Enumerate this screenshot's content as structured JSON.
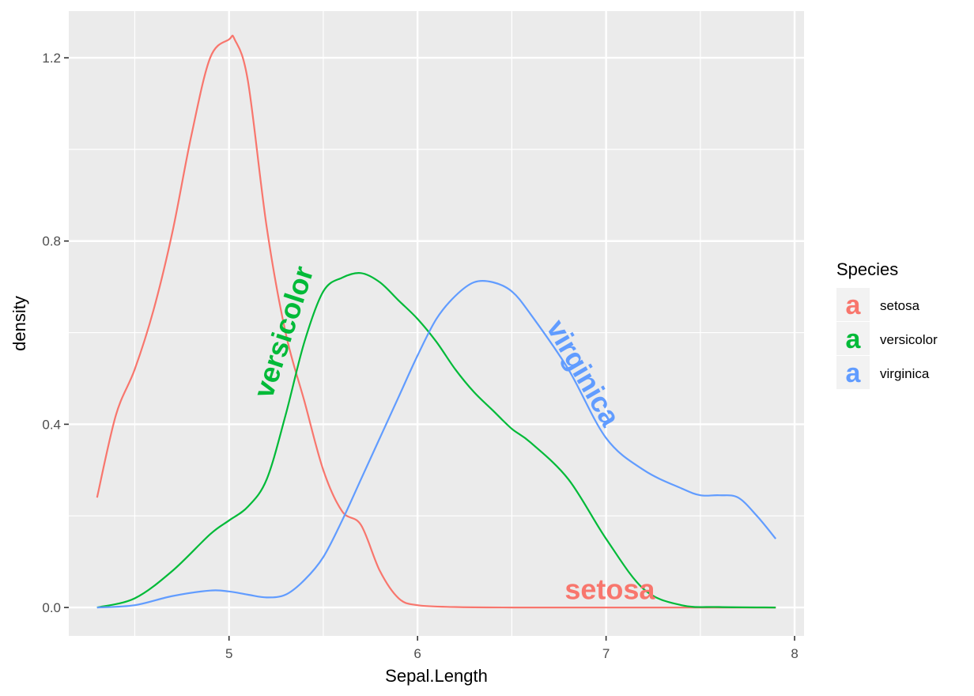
{
  "chart_data": {
    "type": "line",
    "title": "",
    "xlabel": "Sepal.Length",
    "ylabel": "density",
    "xlim": [
      4.15,
      8.05
    ],
    "ylim": [
      -0.062,
      1.302
    ],
    "x_ticks": [
      5,
      6,
      7,
      8
    ],
    "x_tick_labels": [
      "5",
      "6",
      "7",
      "8"
    ],
    "y_ticks": [
      0.0,
      0.4,
      0.8,
      1.2
    ],
    "y_tick_labels": [
      "0.0",
      "0.4",
      "0.8",
      "1.2"
    ],
    "grid": true,
    "legend": {
      "title": "Species",
      "position": "right",
      "key_glyph": "a",
      "entries": [
        "setosa",
        "versicolor",
        "virginica"
      ]
    },
    "series": [
      {
        "name": "setosa",
        "color": "#F8766D",
        "x": [
          4.3,
          4.4,
          4.5,
          4.6,
          4.7,
          4.8,
          4.9,
          5.0,
          5.03,
          5.1,
          5.2,
          5.3,
          5.4,
          5.5,
          5.6,
          5.7,
          5.8,
          5.9,
          6.0,
          6.2,
          6.5,
          7.0,
          7.5,
          7.9
        ],
        "y": [
          0.24,
          0.42,
          0.52,
          0.65,
          0.82,
          1.03,
          1.2,
          1.24,
          1.24,
          1.15,
          0.83,
          0.6,
          0.45,
          0.3,
          0.21,
          0.18,
          0.08,
          0.02,
          0.005,
          0.001,
          0.0,
          0.0,
          0.0,
          0.0
        ]
      },
      {
        "name": "versicolor",
        "color": "#00BA38",
        "x": [
          4.3,
          4.5,
          4.7,
          4.9,
          5.0,
          5.1,
          5.2,
          5.3,
          5.4,
          5.5,
          5.6,
          5.7,
          5.8,
          5.9,
          6.0,
          6.1,
          6.2,
          6.3,
          6.4,
          6.5,
          6.6,
          6.8,
          7.0,
          7.2,
          7.4,
          7.6,
          7.9
        ],
        "y": [
          0.0,
          0.02,
          0.08,
          0.16,
          0.19,
          0.22,
          0.28,
          0.42,
          0.58,
          0.69,
          0.72,
          0.73,
          0.71,
          0.67,
          0.63,
          0.58,
          0.52,
          0.47,
          0.43,
          0.39,
          0.36,
          0.28,
          0.15,
          0.04,
          0.005,
          0.001,
          0.0
        ]
      },
      {
        "name": "virginica",
        "color": "#619CFF",
        "x": [
          4.3,
          4.5,
          4.7,
          4.9,
          5.0,
          5.1,
          5.2,
          5.3,
          5.4,
          5.5,
          5.6,
          5.7,
          5.8,
          5.9,
          6.0,
          6.1,
          6.2,
          6.3,
          6.4,
          6.5,
          6.6,
          6.8,
          7.0,
          7.2,
          7.4,
          7.5,
          7.6,
          7.7,
          7.8,
          7.9
        ],
        "y": [
          0.0,
          0.005,
          0.025,
          0.037,
          0.035,
          0.028,
          0.022,
          0.028,
          0.06,
          0.11,
          0.19,
          0.28,
          0.37,
          0.46,
          0.55,
          0.63,
          0.68,
          0.71,
          0.71,
          0.69,
          0.64,
          0.52,
          0.37,
          0.3,
          0.26,
          0.245,
          0.245,
          0.24,
          0.2,
          0.15
        ]
      }
    ],
    "annotations": [
      {
        "text": "versicolor",
        "series": "versicolor",
        "x": 5.3,
        "y": 0.6,
        "angle": -72
      },
      {
        "text": "virginica",
        "series": "virginica",
        "x": 6.87,
        "y": 0.51,
        "angle": 60
      },
      {
        "text": "setosa",
        "series": "setosa",
        "x": 7.02,
        "y": 0.035,
        "angle": 0
      }
    ]
  }
}
